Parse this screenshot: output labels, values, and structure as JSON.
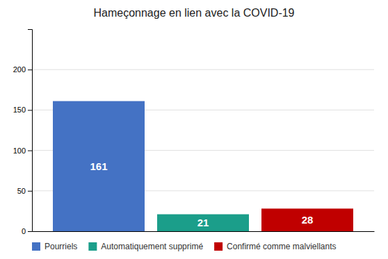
{
  "chart_data": {
    "type": "bar",
    "title": "Hameçonnage en lien avec la COVID-19",
    "categories": [
      "Pourriels",
      "Automatiquement supprimé",
      "Confirmé comme malviellants"
    ],
    "values": [
      161,
      21,
      28
    ],
    "colors": [
      "#4472C4",
      "#1B9E8A",
      "#C00000"
    ],
    "ylim": [
      0,
      250
    ],
    "yticks": [
      0,
      50,
      100,
      150,
      200
    ],
    "grid": true,
    "data_labels": true,
    "tick_labels": "y",
    "legend": "bottom"
  }
}
